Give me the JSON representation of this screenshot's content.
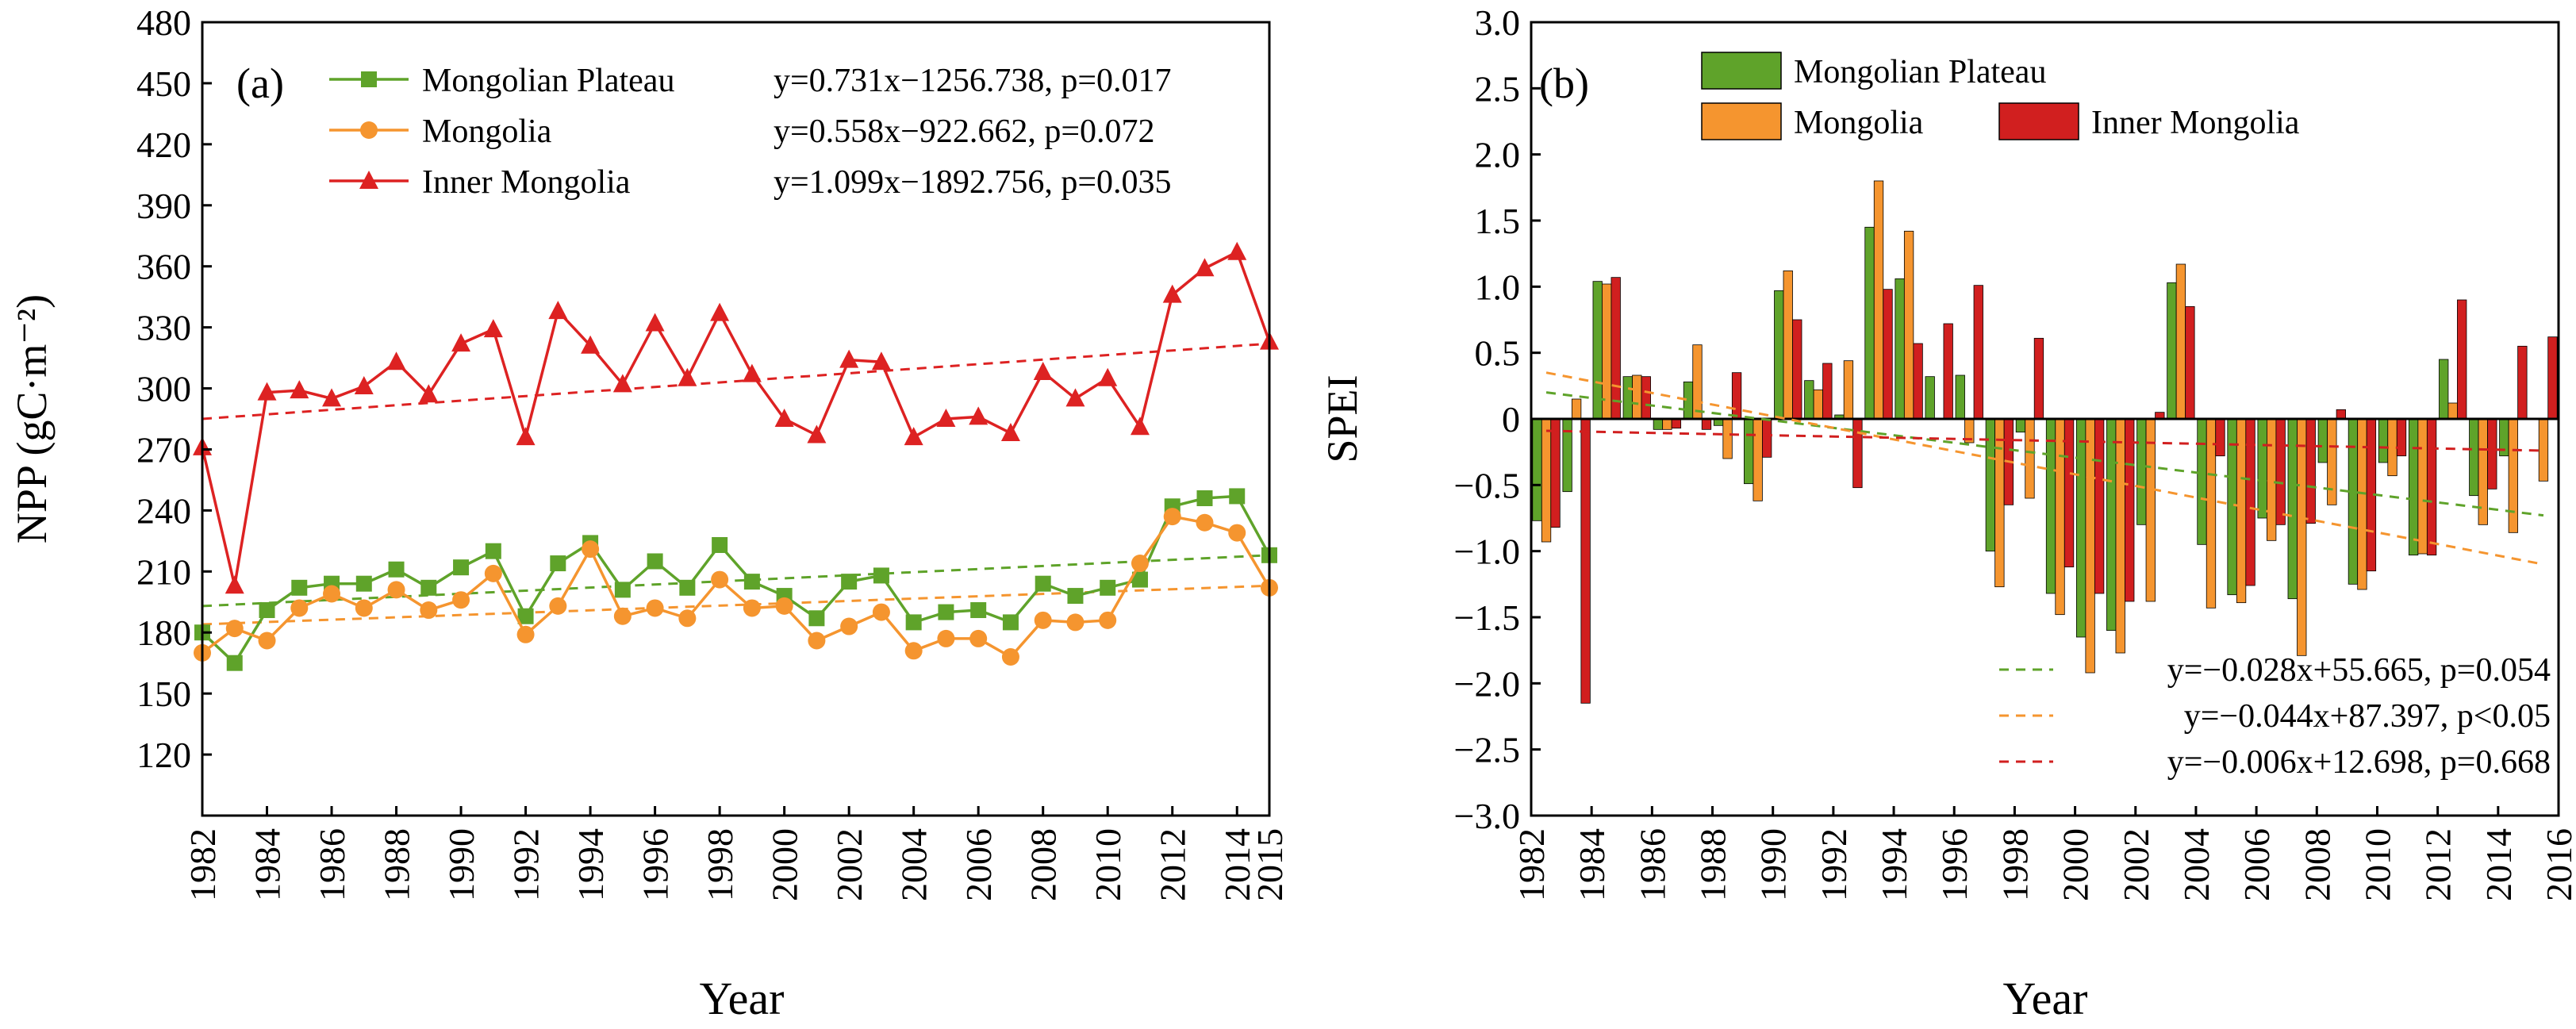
{
  "colors": {
    "mongolian_plateau": "#5fa32a",
    "mongolia": "#f5952f",
    "inner_mongolia": "#dd2222",
    "bar_plateau": "#5fa32a",
    "bar_mongolia": "#f5952f",
    "bar_inner": "#d11f1f"
  },
  "chart_data": [
    {
      "type": "line",
      "panel_label": "(a)",
      "xlabel": "Year",
      "ylabel": "NPP (gC·m⁻²)",
      "xlim": [
        1982,
        2015
      ],
      "ylim": [
        90,
        480
      ],
      "x_ticks": [
        1982,
        1984,
        1986,
        1988,
        1990,
        1992,
        1994,
        1996,
        1998,
        2000,
        2002,
        2004,
        2006,
        2008,
        2010,
        2012,
        2014,
        2015
      ],
      "y_ticks": [
        120,
        150,
        180,
        210,
        240,
        270,
        300,
        330,
        360,
        390,
        420,
        450,
        480
      ],
      "x": [
        1982,
        1983,
        1984,
        1985,
        1986,
        1987,
        1988,
        1989,
        1990,
        1991,
        1992,
        1993,
        1994,
        1995,
        1996,
        1997,
        1998,
        1999,
        2000,
        2001,
        2002,
        2003,
        2004,
        2005,
        2006,
        2007,
        2008,
        2009,
        2010,
        2011,
        2012,
        2013,
        2014,
        2015
      ],
      "series": [
        {
          "name": "Mongolian Plateau",
          "marker": "square",
          "color_key": "mongolian_plateau",
          "values": [
            180,
            165,
            191,
            202,
            204,
            204,
            211,
            202,
            212,
            220,
            188,
            214,
            224,
            201,
            215,
            202,
            223,
            205,
            198,
            187,
            205,
            208,
            185,
            190,
            191,
            185,
            204,
            198,
            202,
            206,
            242,
            246,
            247,
            218
          ],
          "trend": [
            193,
            218
          ],
          "equation": "y=0.731x−1256.738, p=0.017"
        },
        {
          "name": "Mongolia",
          "marker": "circle",
          "color_key": "mongolia",
          "values": [
            170,
            182,
            176,
            192,
            199,
            192,
            201,
            191,
            196,
            209,
            179,
            193,
            221,
            188,
            192,
            187,
            206,
            192,
            193,
            176,
            183,
            190,
            171,
            177,
            177,
            168,
            186,
            185,
            186,
            214,
            237,
            234,
            229,
            202
          ],
          "trend": [
            184,
            203
          ],
          "equation": "y=0.558x−922.662, p=0.072"
        },
        {
          "name": "Inner Mongolia",
          "marker": "triangle",
          "color_key": "inner_mongolia",
          "values": [
            271,
            203,
            298,
            299,
            295,
            301,
            313,
            297,
            322,
            329,
            276,
            338,
            321,
            302,
            332,
            305,
            337,
            307,
            285,
            277,
            314,
            313,
            276,
            285,
            286,
            278,
            308,
            295,
            305,
            281,
            346,
            359,
            367,
            323
          ],
          "trend": [
            285,
            322
          ],
          "equation": "y=1.099x−1892.756, p=0.035"
        }
      ]
    },
    {
      "type": "bar",
      "panel_label": "(b)",
      "xlabel": "Year",
      "ylabel": "SPEI",
      "xlim": [
        1982,
        2016
      ],
      "ylim": [
        -3.0,
        3.0
      ],
      "x_ticks": [
        1982,
        1984,
        1986,
        1988,
        1990,
        1992,
        1994,
        1996,
        1998,
        2000,
        2002,
        2004,
        2006,
        2008,
        2010,
        2012,
        2014,
        2016
      ],
      "y_ticks": [
        "3.0",
        "2.5",
        "2.0",
        "1.5",
        "1.0",
        "0.5",
        "0",
        "−0.5",
        "−1.0",
        "−1.5",
        "−2.0",
        "−2.5",
        "−3.0"
      ],
      "x": [
        1982,
        1983,
        1984,
        1985,
        1986,
        1987,
        1988,
        1989,
        1990,
        1991,
        1992,
        1993,
        1994,
        1995,
        1996,
        1997,
        1998,
        1999,
        2000,
        2001,
        2002,
        2003,
        2004,
        2005,
        2006,
        2007,
        2008,
        2009,
        2010,
        2011,
        2012,
        2013,
        2014,
        2015
      ],
      "series": [
        {
          "name": "Mongolian Plateau",
          "color_key": "bar_plateau",
          "values": [
            -0.77,
            -0.55,
            1.04,
            0.32,
            -0.08,
            0.28,
            -0.05,
            -0.49,
            0.97,
            0.29,
            0.03,
            1.45,
            1.06,
            0.32,
            0.33,
            -1.0,
            -0.1,
            -1.32,
            -1.65,
            -1.6,
            -0.8,
            1.03,
            -0.95,
            -1.33,
            -0.75,
            -1.36,
            -0.33,
            -1.25,
            -0.33,
            -1.03,
            0.45,
            -0.58,
            -0.28,
            0.0
          ],
          "trend": [
            0.2,
            -0.73
          ],
          "equation": "y=−0.028x+55.665, p=0.054"
        },
        {
          "name": "Mongolia",
          "color_key": "bar_mongolia",
          "values": [
            -0.93,
            0.15,
            1.02,
            0.33,
            -0.08,
            0.56,
            -0.3,
            -0.62,
            1.12,
            0.22,
            0.44,
            1.8,
            1.42,
            0.0,
            -0.18,
            -1.27,
            -0.6,
            -1.48,
            -1.92,
            -1.77,
            -1.38,
            1.17,
            -1.43,
            -1.39,
            -0.92,
            -1.79,
            -0.65,
            -1.29,
            -0.43,
            -1.02,
            0.12,
            -0.8,
            -0.86,
            -0.47
          ],
          "trend": [
            0.35,
            -1.1
          ],
          "equation": "y=−0.044x+87.397, p<0.05"
        },
        {
          "name": "Inner Mongolia",
          "color_key": "bar_inner",
          "values": [
            -0.82,
            -2.15,
            1.07,
            0.32,
            -0.07,
            -0.08,
            0.35,
            -0.29,
            0.75,
            0.42,
            -0.52,
            0.98,
            0.57,
            0.72,
            1.01,
            -0.65,
            0.61,
            -1.12,
            -1.32,
            -1.38,
            0.05,
            0.85,
            -0.28,
            -1.26,
            -0.8,
            -0.79,
            0.07,
            -1.15,
            -0.28,
            -1.03,
            0.9,
            -0.53,
            0.55,
            0.62
          ],
          "trend": [
            -0.09,
            -0.24
          ],
          "equation": "y=−0.006x+12.698, p=0.668"
        }
      ]
    }
  ]
}
